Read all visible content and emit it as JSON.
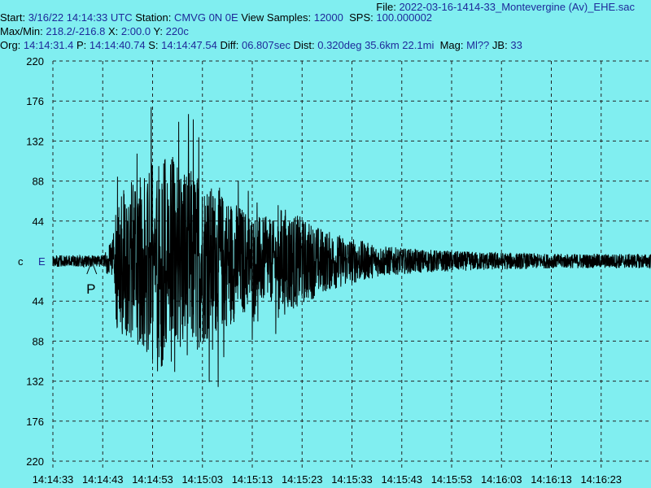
{
  "header": {
    "file_label": "File:",
    "file_value": "2022-03-16-1414-33_Montevergine (Av)_EHE.sac",
    "start_label": "Start:",
    "start_value": "3/16/22 14:14:33 UTC",
    "station_label": "Station:",
    "station_value": "CMVG 0N 0E",
    "view_samples_label": "View Samples:",
    "view_samples_value": "12000",
    "sps_label": "SPS:",
    "sps_value": "100.000002",
    "maxmin_label": "Max/Min:",
    "maxmin_value": "218.2/-216.8",
    "x_label": "X:",
    "x_value": "2:00.0",
    "y_label": "Y:",
    "y_value": "220c",
    "org_label": "Org:",
    "org_value": "14:14:31.4",
    "p_label": "P:",
    "p_value": "14:14:40.74",
    "s_label": "S:",
    "s_value": "14:14:47.54",
    "diff_label": "Diff:",
    "diff_value": "06.807sec",
    "dist_label": "Dist:",
    "dist_value": "0.320deg 35.6km 22.1mi",
    "mag_label": "Mag:",
    "mag_value": "Ml??",
    "jb_label": "JB:",
    "jb_value": "33"
  },
  "chart_data": {
    "type": "line",
    "channel_prefix": "c",
    "channel": "E",
    "p_marker_label": "P",
    "p_marker_time_s": 7.8,
    "y_tick_labels": [
      "220",
      "176",
      "132",
      "88",
      "44",
      "",
      "44",
      "88",
      "132",
      "176",
      "220"
    ],
    "y_tick_values": [
      220,
      176,
      132,
      88,
      44,
      0,
      -44,
      -88,
      -132,
      -176,
      -220
    ],
    "ylim": [
      -220,
      220
    ],
    "x_tick_labels": [
      "14:14:33",
      "14:14:43",
      "14:14:53",
      "14:15:03",
      "14:15:13",
      "14:15:23",
      "14:15:33",
      "14:15:43",
      "14:15:53",
      "14:16:03",
      "14:16:13",
      "14:16:23"
    ],
    "x_tick_seconds": [
      0,
      10,
      20,
      30,
      40,
      50,
      60,
      70,
      80,
      90,
      100,
      110
    ],
    "xlim_seconds": [
      0,
      120
    ],
    "grid": true,
    "max": 218.2,
    "min": -216.8,
    "envelope": {
      "t": [
        0,
        10,
        12,
        13,
        14,
        16,
        18,
        20,
        22,
        25,
        28,
        32,
        36,
        40,
        45,
        50,
        55,
        60,
        65,
        70,
        80,
        90,
        100,
        110,
        120
      ],
      "amp": [
        8,
        8,
        30,
        120,
        150,
        165,
        170,
        205,
        215,
        205,
        185,
        150,
        125,
        95,
        80,
        60,
        42,
        32,
        22,
        18,
        14,
        12,
        10,
        10,
        10
      ]
    },
    "colors": {
      "background": "#80eef0",
      "trace": "#000000",
      "grid": "#222222",
      "header_value": "#1e2a9a"
    }
  }
}
